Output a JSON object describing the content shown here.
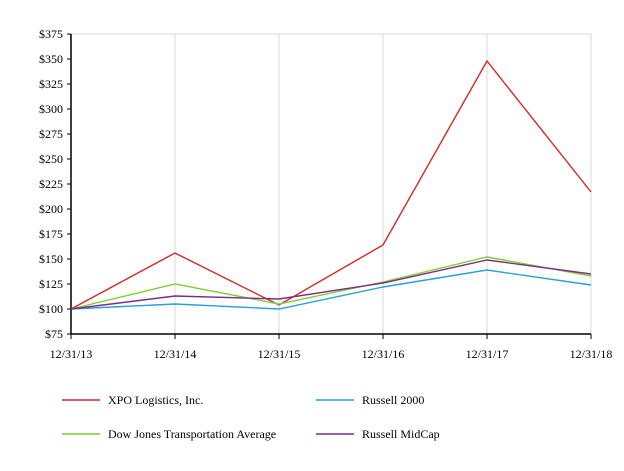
{
  "chart_data": {
    "type": "line",
    "title": "",
    "xlabel": "",
    "ylabel": "",
    "x": [
      "12/31/13",
      "12/31/14",
      "12/31/15",
      "12/31/16",
      "12/31/17",
      "12/31/18"
    ],
    "ylim": [
      75,
      375
    ],
    "yticks": [
      75,
      100,
      125,
      150,
      175,
      200,
      225,
      250,
      275,
      300,
      325,
      350,
      375
    ],
    "ytick_labels": [
      "$75",
      "$100",
      "$125",
      "$150",
      "$175",
      "$200",
      "$225",
      "$250",
      "$275",
      "$300",
      "$325",
      "$350",
      "$375"
    ],
    "grid": "vertical",
    "legend_position": "bottom",
    "series": [
      {
        "name": "XPO Logistics, Inc.",
        "color": "#d62728",
        "values": [
          100,
          156,
          104,
          164,
          348,
          217
        ]
      },
      {
        "name": "Russell 2000",
        "color": "#2b9fd9",
        "values": [
          100,
          105,
          100,
          122,
          139,
          124
        ]
      },
      {
        "name": "Dow Jones Transportation Average",
        "color": "#7fcf2e",
        "values": [
          100,
          125,
          105,
          127,
          152,
          133
        ]
      },
      {
        "name": "Russell MidCap",
        "color": "#7b2c8c",
        "values": [
          100,
          113,
          110,
          126,
          149,
          135
        ]
      }
    ]
  }
}
